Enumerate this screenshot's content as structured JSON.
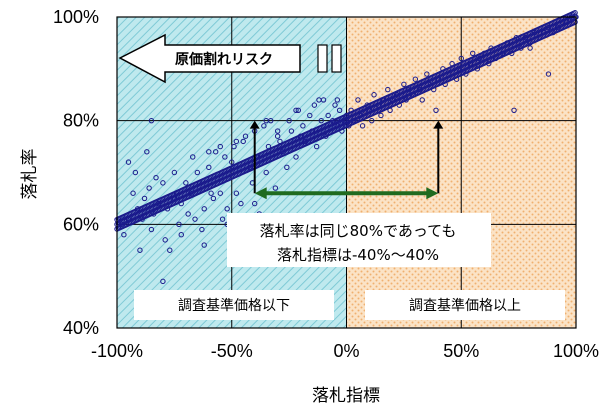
{
  "chart_data": {
    "type": "scatter",
    "xlabel": "落札指標",
    "ylabel": "落札率",
    "xlim": [
      -100,
      100
    ],
    "ylim": [
      40,
      100
    ],
    "x_ticks": [
      "-100%",
      "-50%",
      "0%",
      "50%",
      "100%"
    ],
    "y_ticks": [
      "40%",
      "60%",
      "80%",
      "100%"
    ],
    "grid": true,
    "regions": [
      {
        "label": "調査基準価格以下",
        "x_range": [
          -100,
          0
        ],
        "color": "#9fdde6"
      },
      {
        "label": "調査基準価格以上",
        "x_range": [
          0,
          100
        ],
        "color": "#f6c89a"
      }
    ],
    "annotation": {
      "lines": [
        "落札率は同じ80%であっても",
        "落札指標は-40%～40%"
      ],
      "arrows_x": [
        -40,
        40
      ],
      "arrow_y_top": 80
    },
    "risk_arrow_label": "原価割れリスク",
    "marker_color": "#1a1a8c",
    "series": [
      {
        "trend": [
          [
            -100,
            60
          ],
          [
            0,
            80
          ],
          [
            100,
            100
          ]
        ],
        "points": [
          [
            -98,
            60
          ],
          [
            -95,
            61
          ],
          [
            -93,
            66
          ],
          [
            -91,
            63
          ],
          [
            -89,
            61
          ],
          [
            -88,
            65
          ],
          [
            -86,
            67
          ],
          [
            -85,
            59
          ],
          [
            -84,
            62
          ],
          [
            -82,
            64
          ],
          [
            -80,
            68
          ],
          [
            -79,
            57
          ],
          [
            -78,
            63
          ],
          [
            -77,
            55
          ],
          [
            -75,
            65
          ],
          [
            -74,
            66
          ],
          [
            -73,
            60
          ],
          [
            -72,
            64
          ],
          [
            -70,
            68
          ],
          [
            -69,
            62
          ],
          [
            -68,
            66
          ],
          [
            -66,
            61
          ],
          [
            -65,
            70
          ],
          [
            -64,
            68
          ],
          [
            -63,
            59
          ],
          [
            -62,
            63
          ],
          [
            -60,
            71
          ],
          [
            -59,
            66
          ],
          [
            -58,
            65
          ],
          [
            -57,
            74
          ],
          [
            -55,
            66
          ],
          [
            -54,
            61
          ],
          [
            -53,
            73
          ],
          [
            -52,
            63
          ],
          [
            -50,
            72
          ],
          [
            -49,
            75
          ],
          [
            -48,
            66
          ],
          [
            -46,
            64
          ],
          [
            -45,
            76
          ],
          [
            -44,
            77
          ],
          [
            -42,
            71
          ],
          [
            -41,
            68
          ],
          [
            -40,
            78
          ],
          [
            -39,
            73
          ],
          [
            -38,
            62
          ],
          [
            -36,
            79
          ],
          [
            -35,
            70
          ],
          [
            -34,
            75
          ],
          [
            -33,
            80
          ],
          [
            -31,
            67
          ],
          [
            -30,
            77
          ],
          [
            -29,
            76
          ],
          [
            -28,
            74
          ],
          [
            -26,
            71
          ],
          [
            -25,
            80
          ],
          [
            -24,
            78
          ],
          [
            -22,
            73
          ],
          [
            -21,
            82
          ],
          [
            -20,
            77
          ],
          [
            -19,
            79
          ],
          [
            -18,
            76
          ],
          [
            -16,
            81
          ],
          [
            -15,
            78
          ],
          [
            -14,
            83
          ],
          [
            -13,
            75
          ],
          [
            -11,
            80
          ],
          [
            -10,
            84
          ],
          [
            -9,
            77
          ],
          [
            -8,
            81
          ],
          [
            -6,
            80
          ],
          [
            -5,
            83
          ],
          [
            -4,
            79
          ],
          [
            -3,
            82
          ],
          [
            -2,
            78
          ],
          [
            -1,
            80
          ],
          [
            0,
            81
          ],
          [
            1,
            79
          ],
          [
            2,
            82
          ],
          [
            3,
            80
          ],
          [
            5,
            84
          ],
          [
            6,
            81
          ],
          [
            7,
            79
          ],
          [
            9,
            83
          ],
          [
            10,
            82
          ],
          [
            11,
            80
          ],
          [
            12,
            85
          ],
          [
            14,
            83
          ],
          [
            15,
            81
          ],
          [
            16,
            84
          ],
          [
            18,
            86
          ],
          [
            19,
            82
          ],
          [
            20,
            84
          ],
          [
            22,
            85
          ],
          [
            23,
            83
          ],
          [
            25,
            87
          ],
          [
            26,
            84
          ],
          [
            27,
            86
          ],
          [
            29,
            85
          ],
          [
            30,
            88
          ],
          [
            32,
            86
          ],
          [
            33,
            84
          ],
          [
            35,
            89
          ],
          [
            36,
            87
          ],
          [
            38,
            86
          ],
          [
            39,
            82
          ],
          [
            40,
            88
          ],
          [
            42,
            90
          ],
          [
            43,
            87
          ],
          [
            45,
            89
          ],
          [
            46,
            91
          ],
          [
            48,
            88
          ],
          [
            49,
            90
          ],
          [
            50,
            92
          ],
          [
            52,
            89
          ],
          [
            54,
            91
          ],
          [
            55,
            93
          ],
          [
            57,
            90
          ],
          [
            58,
            92
          ],
          [
            60,
            93
          ],
          [
            62,
            91
          ],
          [
            63,
            94
          ],
          [
            65,
            92
          ],
          [
            66,
            94
          ],
          [
            68,
            93
          ],
          [
            70,
            95
          ],
          [
            72,
            93
          ],
          [
            74,
            96
          ],
          [
            76,
            94
          ],
          [
            78,
            96
          ],
          [
            80,
            95
          ],
          [
            82,
            97
          ],
          [
            84,
            96
          ],
          [
            86,
            97
          ],
          [
            88,
            98
          ],
          [
            90,
            97
          ],
          [
            92,
            98
          ],
          [
            94,
            99
          ],
          [
            96,
            99
          ],
          [
            98,
            100
          ],
          [
            100,
            100
          ],
          [
            73,
            82
          ],
          [
            80,
            94
          ],
          [
            88,
            89
          ],
          [
            78,
            96
          ],
          [
            -85,
            80
          ],
          [
            -95,
            72
          ],
          [
            -97,
            58
          ],
          [
            -90,
            55
          ],
          [
            -80,
            49
          ],
          [
            -83,
            69
          ],
          [
            -72,
            58
          ],
          [
            -62,
            56
          ],
          [
            -67,
            73
          ],
          [
            -52,
            60
          ],
          [
            -45,
            58
          ],
          [
            -40,
            64
          ],
          [
            -55,
            75
          ],
          [
            -48,
            76
          ],
          [
            -30,
            78
          ],
          [
            -22,
            82
          ],
          [
            -35,
            80
          ],
          [
            -12,
            84
          ],
          [
            -4,
            84
          ],
          [
            -60,
            74
          ],
          [
            -75,
            70
          ],
          [
            -92,
            70
          ],
          [
            -87,
            74
          ]
        ]
      }
    ]
  }
}
